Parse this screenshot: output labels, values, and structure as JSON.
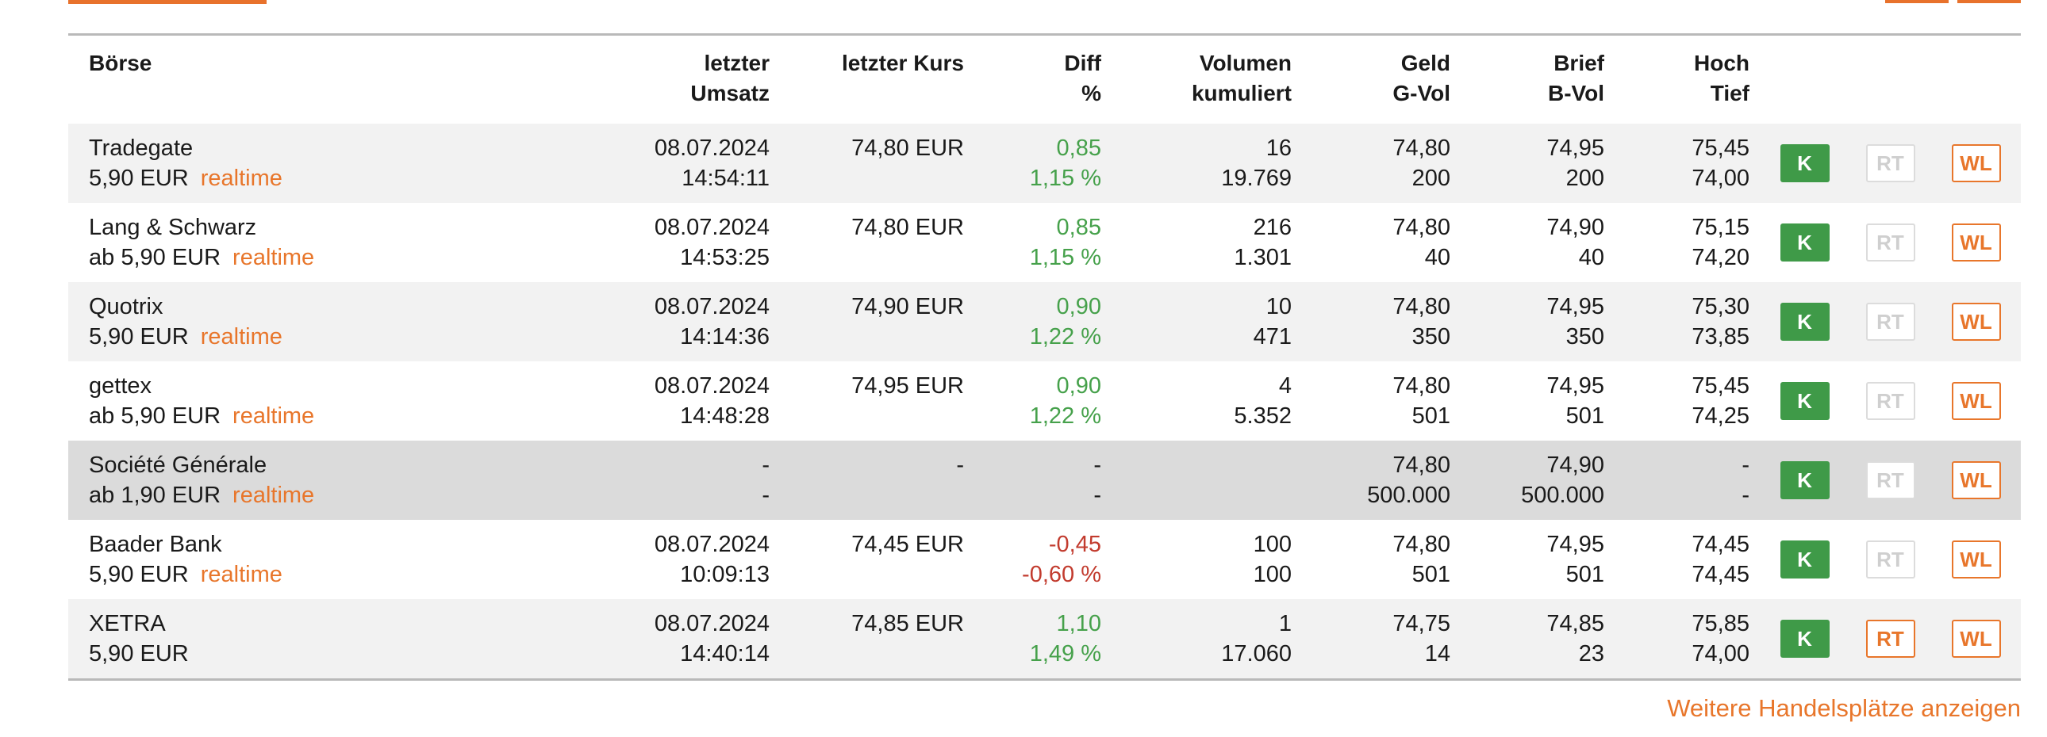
{
  "colors": {
    "accent_orange": "#e8762b",
    "buy_green": "#3f9a48",
    "positive_green": "#46a14b",
    "negative_red": "#c23b2e",
    "row_stripe": "#f2f2f2",
    "row_highlight": "#dbdbdb"
  },
  "header": {
    "boerse": {
      "l1": "Börse",
      "l2": ""
    },
    "umsatz": {
      "l1": "letzter",
      "l2": "Umsatz"
    },
    "kurs": {
      "l1": "letzter Kurs",
      "l2": ""
    },
    "diff": {
      "l1": "Diff",
      "l2": "%"
    },
    "volumen": {
      "l1": "Volumen",
      "l2": "kumuliert"
    },
    "geld": {
      "l1": "Geld",
      "l2": "G-Vol"
    },
    "brief": {
      "l1": "Brief",
      "l2": "B-Vol"
    },
    "hochtief": {
      "l1": "Hoch",
      "l2": "Tief"
    }
  },
  "buttons": {
    "buy": "K",
    "realtime_toggle": "RT",
    "watchlist": "WL"
  },
  "rows": [
    {
      "name": "Tradegate",
      "fee": "5,90 EUR",
      "realtime": "realtime",
      "umsatz_date": "08.07.2024",
      "umsatz_time": "14:54:11",
      "kurs": "74,80 EUR",
      "diff_abs": "0,85",
      "diff_pct": "1,15 %",
      "diff_dir": "up",
      "vol_last": "16",
      "vol_cum": "19.769",
      "geld": "74,80",
      "g_vol": "200",
      "brief": "74,95",
      "b_vol": "200",
      "hoch": "75,45",
      "tief": "74,00",
      "shade": "light",
      "rt_active": false
    },
    {
      "name": "Lang & Schwarz",
      "fee": "ab 5,90 EUR",
      "realtime": "realtime",
      "umsatz_date": "08.07.2024",
      "umsatz_time": "14:53:25",
      "kurs": "74,80 EUR",
      "diff_abs": "0,85",
      "diff_pct": "1,15 %",
      "diff_dir": "up",
      "vol_last": "216",
      "vol_cum": "1.301",
      "geld": "74,80",
      "g_vol": "40",
      "brief": "74,90",
      "b_vol": "40",
      "hoch": "75,15",
      "tief": "74,20",
      "shade": "white",
      "rt_active": false
    },
    {
      "name": "Quotrix",
      "fee": "5,90 EUR",
      "realtime": "realtime",
      "umsatz_date": "08.07.2024",
      "umsatz_time": "14:14:36",
      "kurs": "74,90 EUR",
      "diff_abs": "0,90",
      "diff_pct": "1,22 %",
      "diff_dir": "up",
      "vol_last": "10",
      "vol_cum": "471",
      "geld": "74,80",
      "g_vol": "350",
      "brief": "74,95",
      "b_vol": "350",
      "hoch": "75,30",
      "tief": "73,85",
      "shade": "light",
      "rt_active": false
    },
    {
      "name": "gettex",
      "fee": "ab 5,90 EUR",
      "realtime": "realtime",
      "umsatz_date": "08.07.2024",
      "umsatz_time": "14:48:28",
      "kurs": "74,95 EUR",
      "diff_abs": "0,90",
      "diff_pct": "1,22 %",
      "diff_dir": "up",
      "vol_last": "4",
      "vol_cum": "5.352",
      "geld": "74,80",
      "g_vol": "501",
      "brief": "74,95",
      "b_vol": "501",
      "hoch": "75,45",
      "tief": "74,25",
      "shade": "white",
      "rt_active": false
    },
    {
      "name": "Société Générale",
      "fee": "ab 1,90 EUR",
      "realtime": "realtime",
      "umsatz_date": "-",
      "umsatz_time": "-",
      "kurs": "-",
      "diff_abs": "-",
      "diff_pct": "-",
      "diff_dir": "neutral",
      "vol_last": "",
      "vol_cum": "",
      "geld": "74,80",
      "g_vol": "500.000",
      "brief": "74,90",
      "b_vol": "500.000",
      "hoch": "-",
      "tief": "-",
      "shade": "dark",
      "rt_active": false
    },
    {
      "name": "Baader Bank",
      "fee": "5,90 EUR",
      "realtime": "realtime",
      "umsatz_date": "08.07.2024",
      "umsatz_time": "10:09:13",
      "kurs": "74,45 EUR",
      "diff_abs": "-0,45",
      "diff_pct": "-0,60 %",
      "diff_dir": "down",
      "vol_last": "100",
      "vol_cum": "100",
      "geld": "74,80",
      "g_vol": "501",
      "brief": "74,95",
      "b_vol": "501",
      "hoch": "74,45",
      "tief": "74,45",
      "shade": "white",
      "rt_active": false
    },
    {
      "name": "XETRA",
      "fee": "5,90 EUR",
      "realtime": "",
      "umsatz_date": "08.07.2024",
      "umsatz_time": "14:40:14",
      "kurs": "74,85 EUR",
      "diff_abs": "1,10",
      "diff_pct": "1,49 %",
      "diff_dir": "up",
      "vol_last": "1",
      "vol_cum": "17.060",
      "geld": "74,75",
      "g_vol": "14",
      "brief": "74,85",
      "b_vol": "23",
      "hoch": "75,85",
      "tief": "74,00",
      "shade": "light",
      "rt_active": true
    }
  ],
  "footer": {
    "more_link": "Weitere Handelsplätze anzeigen"
  }
}
